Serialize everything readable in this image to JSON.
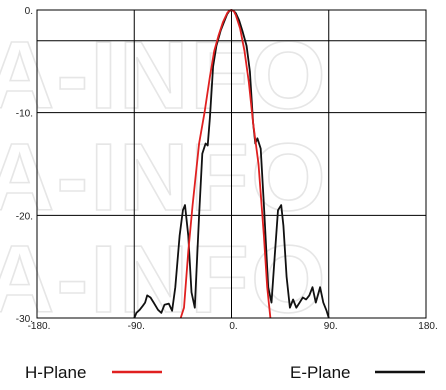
{
  "watermark": "A-INFO",
  "chart_data": {
    "type": "line",
    "title": "",
    "xlabel": "",
    "ylabel": "",
    "xlim": [
      -180,
      180
    ],
    "ylim": [
      -30,
      0
    ],
    "grid": true,
    "x_ticks": [
      -180,
      -90,
      0,
      90,
      180
    ],
    "x_tick_labels": [
      "-180.",
      "-90.",
      "0.",
      "90.",
      "180."
    ],
    "y_ticks": [
      0,
      -10,
      -20,
      -30
    ],
    "y_tick_labels": [
      "0.",
      "-10.",
      "-20.",
      "-30."
    ],
    "legend_position": "bottom",
    "series": [
      {
        "name": "H-Plane",
        "color": "#e02020",
        "x": [
          -47,
          -44,
          -40,
          -36,
          -30,
          -25,
          -20,
          -16,
          -12,
          -8,
          -4,
          -2,
          0,
          2,
          4,
          8,
          12,
          16,
          20,
          25,
          30,
          33,
          36
        ],
        "y": [
          -30,
          -29,
          -23.5,
          -19,
          -13,
          -10,
          -6.5,
          -4,
          -2.5,
          -1.2,
          -0.3,
          -0.05,
          0,
          -0.1,
          -0.5,
          -1.8,
          -4,
          -7,
          -11,
          -15,
          -22,
          -27,
          -30
        ]
      },
      {
        "name": "E-Plane",
        "color": "#111111",
        "x": [
          -90,
          -88,
          -85,
          -82,
          -80,
          -78,
          -75,
          -72,
          -68,
          -65,
          -62,
          -58,
          -55,
          -52,
          -48,
          -45,
          -43,
          -40,
          -37,
          -34,
          -30,
          -27,
          -24,
          -22,
          -20,
          -17,
          -14,
          -10,
          -7,
          -4,
          -2,
          0,
          2,
          4,
          7,
          10,
          14,
          17,
          20,
          22,
          24,
          27,
          30,
          34,
          37,
          40,
          43,
          46,
          48,
          51,
          54,
          57,
          60,
          63,
          66,
          69,
          72,
          75,
          78,
          82,
          85,
          88,
          90
        ],
        "y": [
          -30,
          -29.5,
          -29.2,
          -28.8,
          -28.5,
          -27.8,
          -28,
          -28.5,
          -29.2,
          -29.5,
          -28.7,
          -28.6,
          -29.3,
          -27,
          -22,
          -19.5,
          -19,
          -22,
          -27.5,
          -29,
          -20,
          -14,
          -13,
          -13.2,
          -10.5,
          -5.5,
          -3.5,
          -2,
          -1.2,
          -0.4,
          -0.1,
          0,
          -0.1,
          -0.3,
          -1,
          -2,
          -3.5,
          -6,
          -11,
          -13,
          -12.5,
          -13.5,
          -19,
          -27,
          -28.5,
          -24,
          -19.5,
          -19,
          -21,
          -26,
          -29,
          -28.2,
          -29,
          -28.5,
          -28,
          -28.2,
          -27.8,
          -27,
          -28.5,
          -27,
          -28.5,
          -29.3,
          -30
        ]
      }
    ]
  },
  "legend": {
    "items": [
      {
        "label": "H-Plane",
        "color": "#e02020"
      },
      {
        "label": "E-Plane",
        "color": "#111111"
      }
    ]
  }
}
